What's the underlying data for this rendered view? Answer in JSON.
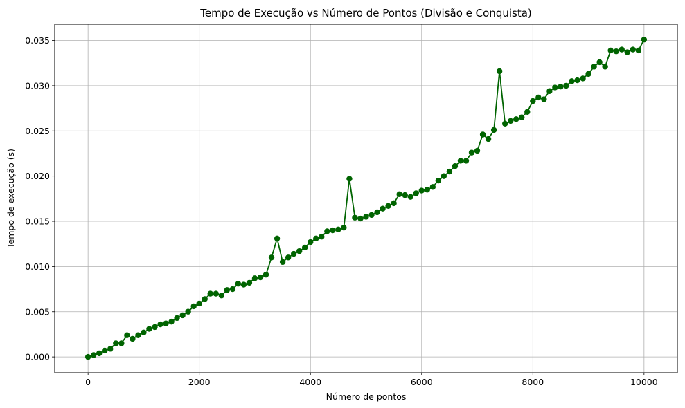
{
  "chart_data": {
    "type": "line",
    "title": "Tempo de Execução vs Número de Pontos (Divisão e Conquista)",
    "xlabel": "Número de pontos",
    "ylabel": "Tempo de execução (s)",
    "xlim": [
      -600,
      10600
    ],
    "ylim": [
      -0.00175,
      0.0368
    ],
    "xticks": [
      0,
      2000,
      4000,
      6000,
      8000,
      10000
    ],
    "xtick_labels": [
      "0",
      "2000",
      "4000",
      "6000",
      "8000",
      "10000"
    ],
    "yticks": [
      0.0,
      0.005,
      0.01,
      0.015,
      0.02,
      0.025,
      0.03,
      0.035
    ],
    "ytick_labels": [
      "0.000",
      "0.005",
      "0.010",
      "0.015",
      "0.020",
      "0.025",
      "0.030",
      "0.035"
    ],
    "grid": true,
    "line_color": "#006400",
    "marker": "circle",
    "series": [
      {
        "x": [
          0,
          100,
          200,
          300,
          400,
          500,
          600,
          700,
          800,
          900,
          1000,
          1100,
          1200,
          1300,
          1400,
          1500,
          1600,
          1700,
          1800,
          1900,
          2000,
          2100,
          2200,
          2300,
          2400,
          2500,
          2600,
          2700,
          2800,
          2900,
          3000,
          3100,
          3200,
          3300,
          3400,
          3500,
          3600,
          3700,
          3800,
          3900,
          4000,
          4100,
          4200,
          4300,
          4400,
          4500,
          4600,
          4700,
          4800,
          4900,
          5000,
          5100,
          5200,
          5300,
          5400,
          5500,
          5600,
          5700,
          5800,
          5900,
          6000,
          6100,
          6200,
          6300,
          6400,
          6500,
          6600,
          6700,
          6800,
          6900,
          7000,
          7100,
          7200,
          7300,
          7400,
          7500,
          7600,
          7700,
          7800,
          7900,
          8000,
          8100,
          8200,
          8300,
          8400,
          8500,
          8600,
          8700,
          8800,
          8900,
          9000,
          9100,
          9200,
          9300,
          9400,
          9500,
          9600,
          9700,
          9800,
          9900,
          10000
        ],
        "values": [
          0.0,
          0.0002,
          0.0004,
          0.0007,
          0.0009,
          0.0015,
          0.0015,
          0.0024,
          0.002,
          0.0024,
          0.0027,
          0.0031,
          0.0033,
          0.0036,
          0.0037,
          0.0039,
          0.0043,
          0.0046,
          0.005,
          0.0056,
          0.0059,
          0.0064,
          0.007,
          0.007,
          0.0068,
          0.0074,
          0.0075,
          0.0081,
          0.008,
          0.0082,
          0.0087,
          0.0088,
          0.0091,
          0.011,
          0.0131,
          0.0105,
          0.011,
          0.0114,
          0.0117,
          0.0121,
          0.0127,
          0.0131,
          0.0133,
          0.0139,
          0.014,
          0.0141,
          0.0143,
          0.0197,
          0.0154,
          0.0153,
          0.0155,
          0.0157,
          0.016,
          0.0164,
          0.0167,
          0.017,
          0.018,
          0.0179,
          0.0177,
          0.0181,
          0.0184,
          0.0185,
          0.0188,
          0.0195,
          0.02,
          0.0205,
          0.0211,
          0.0217,
          0.0217,
          0.0226,
          0.0228,
          0.0246,
          0.0241,
          0.0251,
          0.0316,
          0.0258,
          0.0261,
          0.0263,
          0.0265,
          0.0271,
          0.0283,
          0.0287,
          0.0285,
          0.0294,
          0.0298,
          0.0299,
          0.03,
          0.0305,
          0.0306,
          0.0308,
          0.0313,
          0.0321,
          0.0326,
          0.0321,
          0.0339,
          0.0338,
          0.034,
          0.0337,
          0.034,
          0.0339,
          0.0351
        ]
      }
    ]
  }
}
